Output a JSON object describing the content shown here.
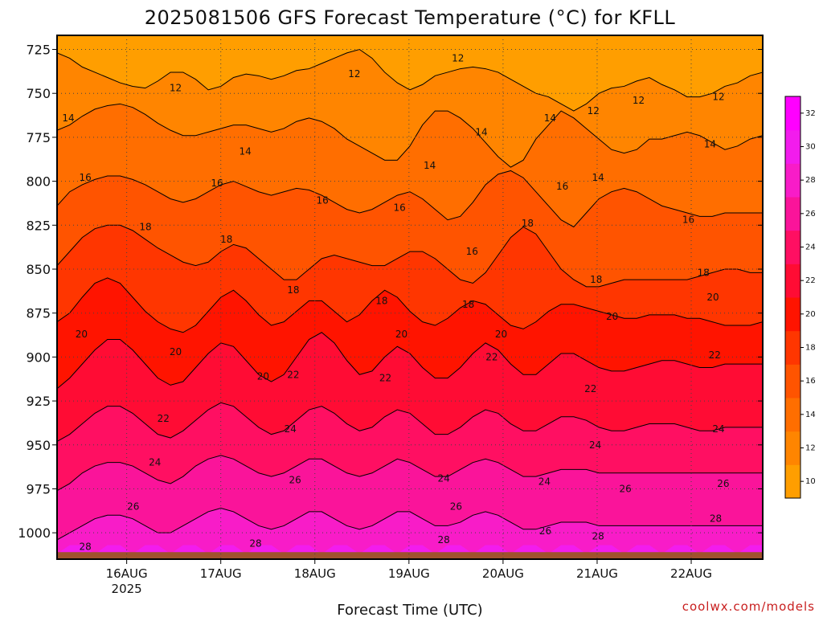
{
  "chart_data": {
    "type": "heatmap",
    "title": "2025081506 GFS Forecast Temperature (°C) for KFLL",
    "xlabel": "Forecast Time (UTC)",
    "ylabel": "",
    "credit": "coolwx.com/models",
    "x_ticks": [
      {
        "label": "16AUG",
        "sublabel": "2025"
      },
      {
        "label": "17AUG",
        "sublabel": ""
      },
      {
        "label": "18AUG",
        "sublabel": ""
      },
      {
        "label": "19AUG",
        "sublabel": ""
      },
      {
        "label": "20AUG",
        "sublabel": ""
      },
      {
        "label": "21AUG",
        "sublabel": ""
      },
      {
        "label": "22AUG",
        "sublabel": ""
      }
    ],
    "x_range_days": [
      -0.74,
      6.76
    ],
    "y_ticks": [
      725,
      750,
      775,
      800,
      825,
      850,
      875,
      900,
      925,
      950,
      975,
      1000
    ],
    "ylim": [
      1015,
      717
    ],
    "y_axis": "pressure (hPa), inverted",
    "grid": true,
    "colorbar": {
      "levels": [
        10,
        12,
        14,
        16,
        18,
        20,
        22,
        24,
        26,
        28,
        30,
        32
      ],
      "colors": [
        "#ff9e00",
        "#ff8500",
        "#ff6e00",
        "#ff5400",
        "#ff3600",
        "#ff1400",
        "#ff0c34",
        "#ff0f62",
        "#fa149a",
        "#f81cc8",
        "#f21ced",
        "#ff00ff"
      ],
      "labels": [
        "10",
        "12",
        "14",
        "16",
        "18",
        "20",
        "22",
        "24",
        "26",
        "28",
        "30",
        "32"
      ]
    },
    "isotherm_levels": [
      12,
      14,
      16,
      18,
      20,
      22,
      24,
      26,
      28
    ],
    "isotherm_pressure_hpa": [
      {
        "level": 12,
        "p": [
          727,
          730,
          735,
          738,
          741,
          744,
          746,
          747,
          743,
          738,
          738,
          742,
          748,
          746,
          741,
          739,
          740,
          742,
          740,
          737,
          736,
          733,
          730,
          727,
          725,
          730,
          738,
          744,
          748,
          745,
          740,
          738,
          736,
          735,
          736,
          738,
          742,
          746,
          750,
          752,
          756,
          760,
          756,
          750,
          747,
          746,
          743,
          741,
          745,
          748,
          752,
          752,
          750,
          746,
          744,
          740,
          738
        ]
      },
      {
        "level": 14,
        "p": [
          771,
          768,
          763,
          759,
          757,
          756,
          758,
          762,
          767,
          771,
          774,
          774,
          772,
          770,
          768,
          768,
          770,
          772,
          770,
          766,
          764,
          766,
          770,
          776,
          780,
          784,
          788,
          788,
          780,
          768,
          760,
          760,
          764,
          770,
          778,
          786,
          792,
          788,
          776,
          768,
          760,
          764,
          770,
          776,
          782,
          784,
          782,
          776,
          776,
          774,
          772,
          774,
          778,
          782,
          780,
          776,
          774
        ]
      },
      {
        "level": 16,
        "p": [
          814,
          806,
          802,
          799,
          797,
          797,
          799,
          802,
          806,
          810,
          812,
          810,
          806,
          802,
          800,
          803,
          806,
          808,
          806,
          804,
          805,
          808,
          812,
          816,
          818,
          816,
          812,
          808,
          806,
          810,
          816,
          822,
          820,
          812,
          802,
          796,
          794,
          798,
          806,
          814,
          822,
          826,
          818,
          810,
          806,
          804,
          806,
          810,
          814,
          816,
          818,
          820,
          820,
          818,
          818,
          818,
          818
        ]
      },
      {
        "level": 18,
        "p": [
          848,
          840,
          832,
          827,
          825,
          825,
          828,
          833,
          838,
          842,
          846,
          848,
          846,
          840,
          836,
          838,
          844,
          850,
          856,
          856,
          850,
          844,
          842,
          844,
          846,
          848,
          848,
          844,
          840,
          840,
          844,
          850,
          856,
          858,
          852,
          842,
          832,
          826,
          830,
          840,
          850,
          856,
          860,
          860,
          858,
          856,
          856,
          856,
          856,
          856,
          856,
          854,
          852,
          850,
          850,
          852,
          852
        ]
      },
      {
        "level": 20,
        "p": [
          880,
          875,
          866,
          858,
          855,
          858,
          866,
          874,
          880,
          884,
          886,
          882,
          874,
          866,
          862,
          868,
          876,
          882,
          880,
          874,
          868,
          868,
          874,
          880,
          876,
          868,
          862,
          866,
          874,
          880,
          882,
          878,
          872,
          868,
          870,
          876,
          882,
          884,
          880,
          874,
          870,
          870,
          872,
          874,
          876,
          878,
          878,
          876,
          876,
          876,
          878,
          878,
          880,
          882,
          882,
          882,
          880
        ]
      },
      {
        "level": 22,
        "p": [
          918,
          912,
          904,
          896,
          890,
          890,
          896,
          904,
          912,
          916,
          914,
          906,
          898,
          892,
          894,
          902,
          910,
          914,
          910,
          900,
          890,
          886,
          892,
          902,
          910,
          908,
          900,
          894,
          898,
          906,
          912,
          912,
          906,
          898,
          892,
          896,
          904,
          910,
          910,
          904,
          898,
          898,
          902,
          906,
          908,
          908,
          906,
          904,
          902,
          902,
          904,
          906,
          906,
          904,
          904,
          904,
          904
        ]
      },
      {
        "level": 24,
        "p": [
          948,
          944,
          938,
          932,
          928,
          928,
          932,
          938,
          944,
          946,
          942,
          936,
          930,
          926,
          928,
          934,
          940,
          944,
          942,
          936,
          930,
          928,
          932,
          938,
          942,
          940,
          934,
          930,
          932,
          938,
          944,
          944,
          940,
          934,
          930,
          932,
          938,
          942,
          942,
          938,
          934,
          934,
          936,
          940,
          942,
          942,
          940,
          938,
          938,
          938,
          940,
          942,
          942,
          940,
          940,
          940,
          940
        ]
      },
      {
        "level": 26,
        "p": [
          976,
          972,
          966,
          962,
          960,
          960,
          962,
          966,
          970,
          972,
          968,
          962,
          958,
          956,
          958,
          962,
          966,
          968,
          966,
          962,
          958,
          958,
          962,
          966,
          968,
          966,
          962,
          958,
          960,
          964,
          968,
          968,
          964,
          960,
          958,
          960,
          964,
          968,
          968,
          966,
          964,
          964,
          964,
          966,
          966,
          966,
          966,
          966,
          966,
          966,
          966,
          966,
          966,
          966,
          966,
          966,
          966
        ]
      },
      {
        "level": 28,
        "p": [
          1004,
          1000,
          996,
          992,
          990,
          990,
          992,
          996,
          1000,
          1000,
          996,
          992,
          988,
          986,
          988,
          992,
          996,
          998,
          996,
          992,
          988,
          988,
          992,
          996,
          998,
          996,
          992,
          988,
          988,
          992,
          996,
          996,
          994,
          990,
          988,
          990,
          994,
          998,
          998,
          996,
          994,
          994,
          994,
          996,
          996,
          996,
          996,
          996,
          996,
          996,
          996,
          996,
          996,
          996,
          996,
          996,
          996
        ]
      }
    ],
    "contour_labels": [
      {
        "value": 12,
        "day": 0.52,
        "p": 747
      },
      {
        "value": 12,
        "day": 2.42,
        "p": 739
      },
      {
        "value": 12,
        "day": 3.52,
        "p": 730
      },
      {
        "value": 12,
        "day": 4.96,
        "p": 760
      },
      {
        "value": 12,
        "day": 5.44,
        "p": 754
      },
      {
        "value": 12,
        "day": 6.29,
        "p": 752
      },
      {
        "value": 14,
        "day": -0.62,
        "p": 764
      },
      {
        "value": 14,
        "day": 1.26,
        "p": 783
      },
      {
        "value": 14,
        "day": 3.22,
        "p": 791
      },
      {
        "value": 14,
        "day": 3.77,
        "p": 772
      },
      {
        "value": 14,
        "day": 4.5,
        "p": 764
      },
      {
        "value": 14,
        "day": 5.01,
        "p": 798
      },
      {
        "value": 14,
        "day": 6.2,
        "p": 779
      },
      {
        "value": 16,
        "day": -0.44,
        "p": 798
      },
      {
        "value": 16,
        "day": 0.96,
        "p": 801
      },
      {
        "value": 16,
        "day": 2.08,
        "p": 811
      },
      {
        "value": 16,
        "day": 2.9,
        "p": 815
      },
      {
        "value": 16,
        "day": 3.67,
        "p": 840
      },
      {
        "value": 16,
        "day": 4.63,
        "p": 803
      },
      {
        "value": 16,
        "day": 5.97,
        "p": 822
      },
      {
        "value": 18,
        "day": 0.2,
        "p": 826
      },
      {
        "value": 18,
        "day": 1.06,
        "p": 833
      },
      {
        "value": 18,
        "day": 1.77,
        "p": 862
      },
      {
        "value": 18,
        "day": 2.71,
        "p": 868
      },
      {
        "value": 18,
        "day": 3.63,
        "p": 870
      },
      {
        "value": 18,
        "day": 4.26,
        "p": 824
      },
      {
        "value": 18,
        "day": 4.99,
        "p": 856
      },
      {
        "value": 18,
        "day": 6.13,
        "p": 852
      },
      {
        "value": 20,
        "day": -0.48,
        "p": 887
      },
      {
        "value": 20,
        "day": 0.52,
        "p": 897
      },
      {
        "value": 20,
        "day": 1.45,
        "p": 911
      },
      {
        "value": 20,
        "day": 2.92,
        "p": 887
      },
      {
        "value": 20,
        "day": 3.98,
        "p": 887
      },
      {
        "value": 20,
        "day": 5.16,
        "p": 877
      },
      {
        "value": 20,
        "day": 6.23,
        "p": 866
      },
      {
        "value": 22,
        "day": 0.39,
        "p": 935
      },
      {
        "value": 22,
        "day": 1.77,
        "p": 910
      },
      {
        "value": 22,
        "day": 2.75,
        "p": 912
      },
      {
        "value": 22,
        "day": 3.88,
        "p": 900
      },
      {
        "value": 22,
        "day": 4.93,
        "p": 918
      },
      {
        "value": 22,
        "day": 6.25,
        "p": 899
      },
      {
        "value": 24,
        "day": 0.3,
        "p": 960
      },
      {
        "value": 24,
        "day": 1.74,
        "p": 941
      },
      {
        "value": 24,
        "day": 3.37,
        "p": 969
      },
      {
        "value": 24,
        "day": 4.44,
        "p": 971
      },
      {
        "value": 24,
        "day": 4.98,
        "p": 950
      },
      {
        "value": 24,
        "day": 6.29,
        "p": 941
      },
      {
        "value": 26,
        "day": 0.07,
        "p": 985
      },
      {
        "value": 26,
        "day": 1.79,
        "p": 970
      },
      {
        "value": 26,
        "day": 3.5,
        "p": 985
      },
      {
        "value": 26,
        "day": 4.45,
        "p": 999
      },
      {
        "value": 26,
        "day": 5.3,
        "p": 975
      },
      {
        "value": 26,
        "day": 6.34,
        "p": 972
      },
      {
        "value": 28,
        "day": -0.44,
        "p": 1008
      },
      {
        "value": 28,
        "day": 1.37,
        "p": 1006
      },
      {
        "value": 28,
        "day": 3.37,
        "p": 1004
      },
      {
        "value": 28,
        "day": 5.01,
        "p": 1002
      },
      {
        "value": 28,
        "day": 6.26,
        "p": 992
      }
    ],
    "terrain_color": "#a0522d"
  }
}
